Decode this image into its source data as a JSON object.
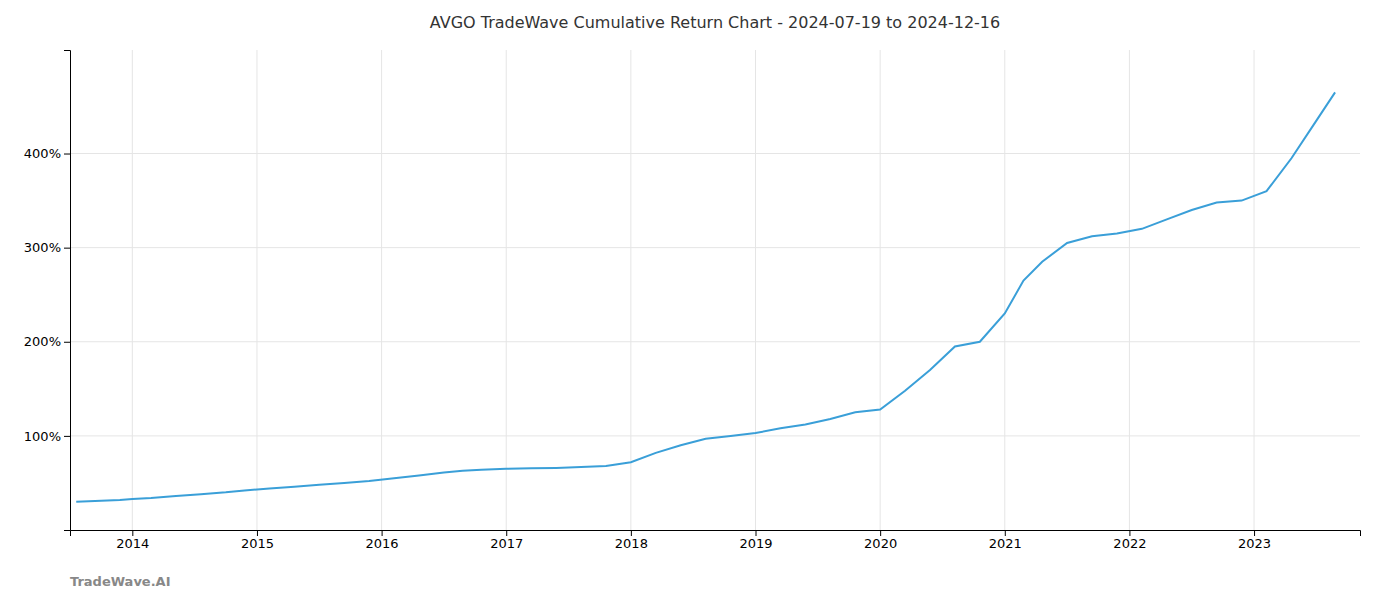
{
  "chart_data": {
    "type": "line",
    "title": "AVGO TradeWave Cumulative Return Chart - 2024-07-19 to 2024-12-16",
    "annotations": [
      "TradeWave.AI"
    ],
    "color": "#3a9fd8",
    "grid": true,
    "x": [
      2013.55,
      2013.75,
      2013.9,
      2014.0,
      2014.15,
      2014.35,
      2014.55,
      2014.75,
      2014.9,
      2015.1,
      2015.3,
      2015.5,
      2015.7,
      2015.9,
      2016.1,
      2016.3,
      2016.5,
      2016.65,
      2016.8,
      2017.0,
      2017.2,
      2017.4,
      2017.6,
      2017.8,
      2018.0,
      2018.2,
      2018.4,
      2018.6,
      2018.8,
      2019.0,
      2019.2,
      2019.4,
      2019.6,
      2019.8,
      2020.0,
      2020.2,
      2020.4,
      2020.6,
      2020.8,
      2021.0,
      2021.15,
      2021.3,
      2021.5,
      2021.7,
      2021.9,
      2022.1,
      2022.3,
      2022.5,
      2022.7,
      2022.9,
      2023.1,
      2023.3,
      2023.5,
      2023.65
    ],
    "values": [
      30,
      31,
      32,
      33,
      34,
      36,
      38,
      40,
      42,
      44,
      46,
      48,
      50,
      52,
      55,
      58,
      61,
      63,
      64,
      65,
      65.5,
      66,
      67,
      68,
      72,
      82,
      90,
      97,
      100,
      103,
      108,
      112,
      118,
      125,
      128,
      148,
      170,
      195,
      200,
      230,
      265,
      285,
      305,
      312,
      315,
      320,
      330,
      340,
      348,
      350,
      360,
      395,
      435,
      465
    ],
    "xlim": [
      2013.5,
      2023.85
    ],
    "ylim": [
      0,
      510
    ],
    "xticks": [
      2014,
      2015,
      2016,
      2017,
      2018,
      2019,
      2020,
      2021,
      2022,
      2023
    ],
    "yticks": [
      {
        "value": 100,
        "label": "100%"
      },
      {
        "value": 200,
        "label": "200%"
      },
      {
        "value": 300,
        "label": "300%"
      },
      {
        "value": 400,
        "label": "400%"
      }
    ]
  }
}
